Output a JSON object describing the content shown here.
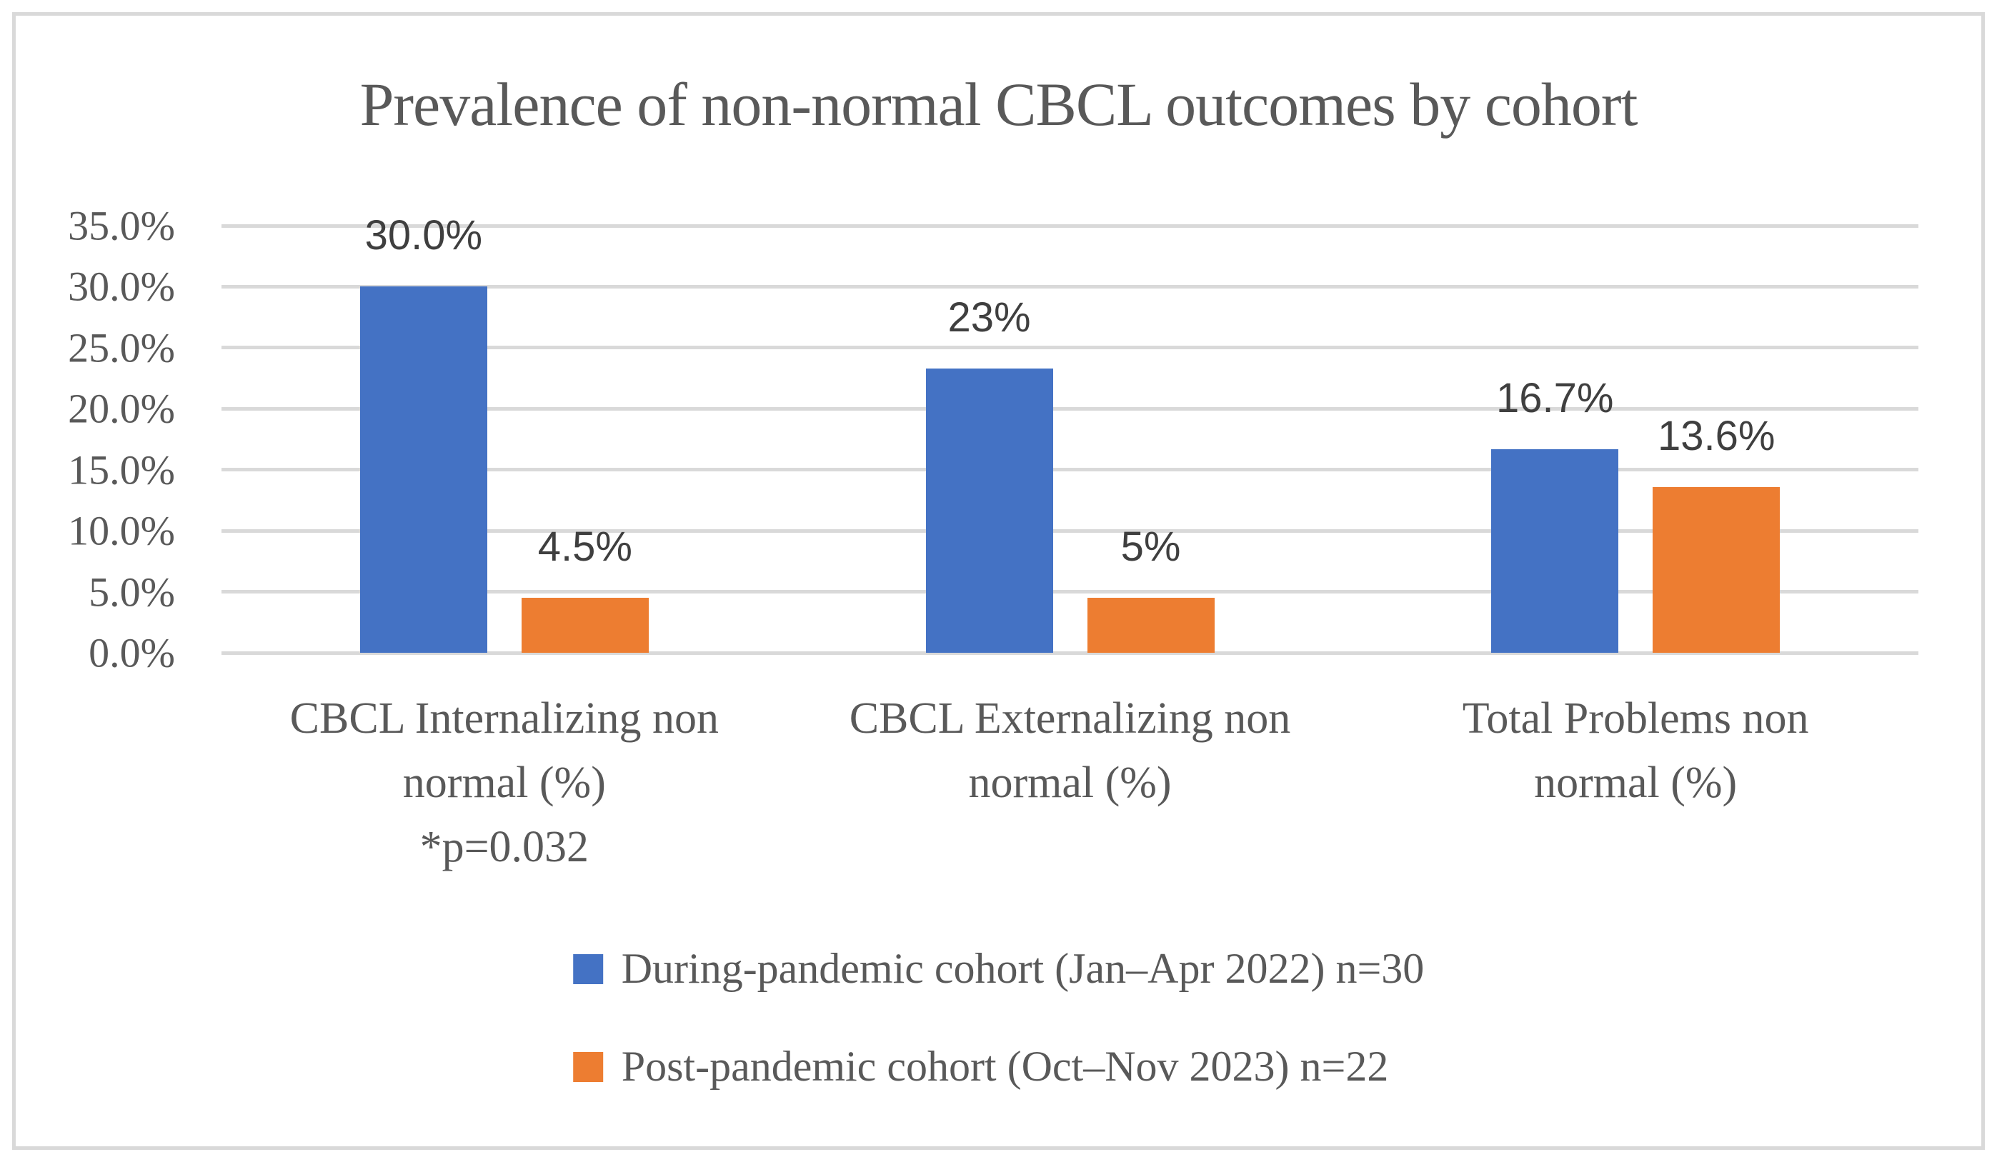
{
  "chart": {
    "title": "Prevalence of non-normal CBCL outcomes by cohort"
  },
  "chart_data": {
    "type": "bar",
    "title": "Prevalence of non-normal CBCL outcomes by cohort",
    "categories": [
      {
        "lines": [
          "CBCL Internalizing non",
          "normal (%)",
          "*p=0.032"
        ]
      },
      {
        "lines": [
          "CBCL Externalizing non",
          "normal (%)"
        ]
      },
      {
        "lines": [
          "Total Problems non",
          "normal (%)"
        ]
      }
    ],
    "series": [
      {
        "name": "During-pandemic cohort (Jan–Apr 2022) n=30",
        "color": "#4472C4",
        "values": [
          30.0,
          23.3,
          16.7
        ],
        "labels": [
          "30.0%",
          "23%",
          "16.7%"
        ]
      },
      {
        "name": "Post-pandemic cohort (Oct–Nov 2023) n=22",
        "color": "#ED7D31",
        "values": [
          4.5,
          4.5,
          13.6
        ],
        "labels": [
          "4.5%",
          "5%",
          "13.6%"
        ]
      }
    ],
    "y_axis": {
      "min": 0,
      "max": 35,
      "step": 5,
      "tick_labels": [
        "0.0%",
        "5.0%",
        "10.0%",
        "15.0%",
        "20.0%",
        "25.0%",
        "30.0%",
        "35.0%"
      ]
    },
    "grid": true,
    "legend_position": "bottom-left-aligned",
    "colors": {
      "gridline": "#D9D9D9",
      "frame_border": "#D9D9D9",
      "axis_text": "#595959",
      "title_text": "#595959",
      "data_label_text": "#3F3F3F"
    }
  }
}
